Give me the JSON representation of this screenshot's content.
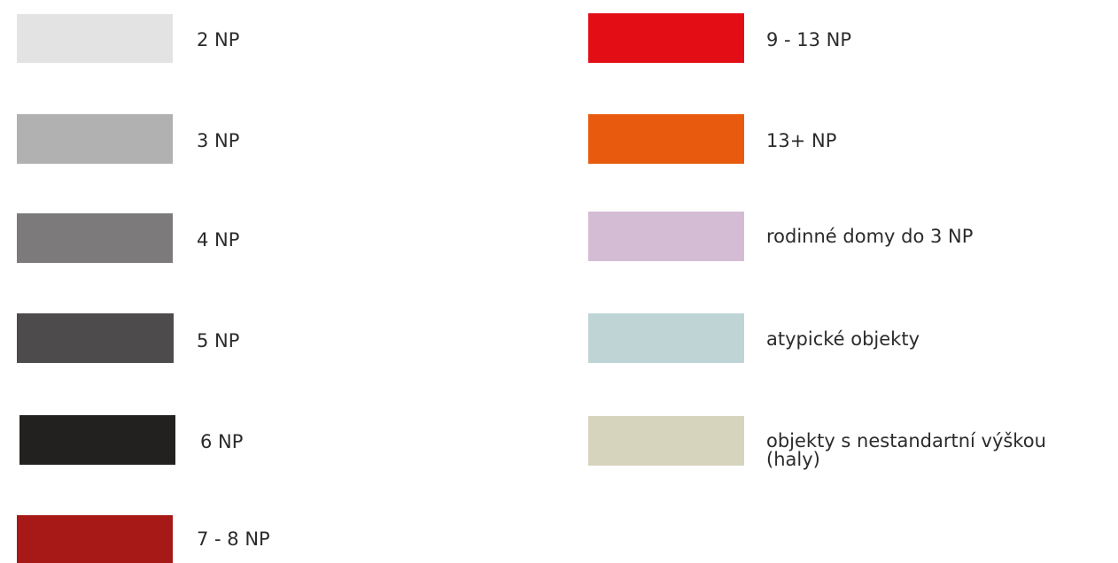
{
  "legend": {
    "items": [
      {
        "label": "2 NP",
        "color": "#e3e3e4"
      },
      {
        "label": "3 NP",
        "color": "#b2b1b1"
      },
      {
        "label": "4 NP",
        "color": "#7c7a7b"
      },
      {
        "label": "5 NP",
        "color": "#4d4b4c"
      },
      {
        "label": "6 NP",
        "color": "#232120"
      },
      {
        "label": "7 - 8 NP",
        "color": "#a71916"
      },
      {
        "label": "9 - 13 NP",
        "color": "#e30d16"
      },
      {
        "label": "13+  NP",
        "color": "#e85b0e"
      },
      {
        "label": "rodinné domy do 3 NP",
        "color": "#d4bcd4"
      },
      {
        "label": "atypické objekty",
        "color": "#bfd5d5"
      },
      {
        "label": "objekty s nestandartní výškou",
        "label_line2": "(haly)",
        "color": "#d6d4bd"
      }
    ]
  }
}
